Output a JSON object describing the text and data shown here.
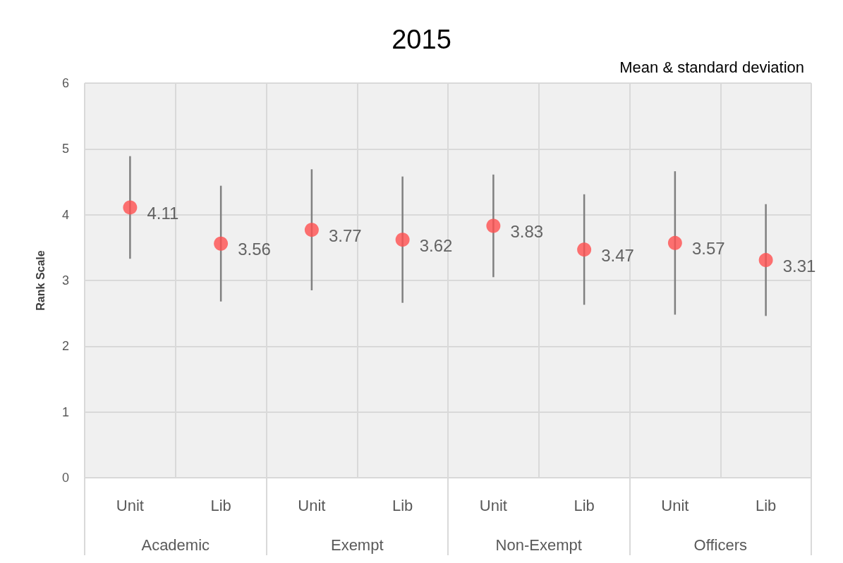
{
  "chart_data": {
    "type": "scatter",
    "title": "2015",
    "ylabel": "Rank Scale",
    "annotations": [
      "Mean & standard deviation",
      "Academic",
      "Exempt",
      "Non-Exempt",
      "Officers"
    ],
    "categories": [
      "Unit",
      "Lib",
      "Unit",
      "Lib",
      "Unit",
      "Lib",
      "Unit",
      "Lib"
    ],
    "values": [
      4.11,
      3.56,
      3.77,
      3.62,
      3.83,
      3.47,
      3.57,
      3.31
    ],
    "errors": [
      0.78,
      0.88,
      0.92,
      0.96,
      0.78,
      0.84,
      1.09,
      0.85
    ],
    "color": "#ff4f4f",
    "marker": "circle",
    "data_labels": true,
    "ylim": [
      0,
      6
    ],
    "yticks": [
      0,
      1,
      2,
      3,
      4,
      5,
      6
    ],
    "grid": true
  }
}
